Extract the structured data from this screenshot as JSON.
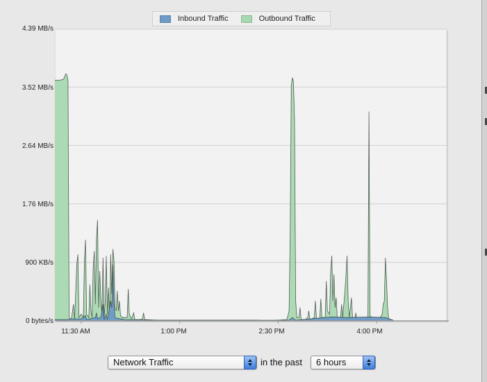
{
  "legend": {
    "inbound_label": "Inbound Traffic",
    "outbound_label": "Outbound Traffic",
    "inbound_color": "#6d9ac7",
    "outbound_color": "#a8d8b0"
  },
  "controls": {
    "metric_value": "Network Traffic",
    "connector_text": "in the past",
    "range_value": "6 hours"
  },
  "chart_data": {
    "type": "area",
    "title": "",
    "xlabel": "",
    "ylabel": "",
    "y_unit": "MB/s",
    "ylim": [
      0,
      4.39
    ],
    "xlim": [
      "11:06 AM",
      "5:04 PM"
    ],
    "grid": true,
    "legend_position": "top",
    "y_ticks": [
      "0 bytes/s",
      "900 KB/s",
      "1.76 MB/s",
      "2.64 MB/s",
      "3.52 MB/s",
      "4.39 MB/s"
    ],
    "y_tick_values": [
      0,
      0.88,
      1.76,
      2.64,
      3.52,
      4.39
    ],
    "x_ticks": [
      "11:30 AM",
      "1:00 PM",
      "2:30 PM",
      "4:00 PM"
    ],
    "x_tick_minutes": [
      690,
      780,
      870,
      960
    ],
    "series": [
      {
        "name": "Outbound Traffic",
        "color": "#a8d8b0",
        "points": [
          [
            666,
            3.62
          ],
          [
            668,
            3.62
          ],
          [
            670,
            3.62
          ],
          [
            672,
            3.63
          ],
          [
            674,
            3.64
          ],
          [
            675,
            3.68
          ],
          [
            676,
            3.72
          ],
          [
            677,
            3.7
          ],
          [
            678,
            3.62
          ],
          [
            679,
            0.05
          ],
          [
            681,
            0.02
          ],
          [
            683,
            0.25
          ],
          [
            684,
            0.02
          ],
          [
            686,
            0.85
          ],
          [
            687,
            1.0
          ],
          [
            688,
            0.05
          ],
          [
            690,
            0.1
          ],
          [
            692,
            0.05
          ],
          [
            693,
            0.9
          ],
          [
            694,
            1.22
          ],
          [
            695,
            0.1
          ],
          [
            697,
            0.05
          ],
          [
            698,
            0.55
          ],
          [
            699,
            0.15
          ],
          [
            700,
            0.05
          ],
          [
            701,
            0.8
          ],
          [
            702,
            1.05
          ],
          [
            703,
            0.25
          ],
          [
            704,
            1.25
          ],
          [
            705,
            1.52
          ],
          [
            706,
            0.2
          ],
          [
            707,
            0.75
          ],
          [
            708,
            0.3
          ],
          [
            709,
            0.1
          ],
          [
            710,
            0.95
          ],
          [
            711,
            0.05
          ],
          [
            712,
            0.3
          ],
          [
            713,
            0.98
          ],
          [
            714,
            0.1
          ],
          [
            715,
            0.5
          ],
          [
            716,
            0.05
          ],
          [
            717,
            1.0
          ],
          [
            718,
            0.4
          ],
          [
            719,
            1.08
          ],
          [
            720,
            0.9
          ],
          [
            721,
            0.2
          ],
          [
            722,
            0.15
          ],
          [
            723,
            0.45
          ],
          [
            724,
            0.15
          ],
          [
            725,
            0.3
          ],
          [
            726,
            0.08
          ],
          [
            728,
            0.05
          ],
          [
            730,
            0.05
          ],
          [
            732,
            0.05
          ],
          [
            733,
            0.48
          ],
          [
            734,
            0.1
          ],
          [
            736,
            0.03
          ],
          [
            738,
            0.12
          ],
          [
            739,
            0.02
          ],
          [
            742,
            0.02
          ],
          [
            744,
            0.02
          ],
          [
            746,
            0.03
          ],
          [
            747,
            0.12
          ],
          [
            748,
            0.02
          ],
          [
            760,
            0.01
          ],
          [
            780,
            0.01
          ],
          [
            800,
            0.01
          ],
          [
            820,
            0.01
          ],
          [
            840,
            0.01
          ],
          [
            850,
            0.01
          ],
          [
            860,
            0.0
          ],
          [
            870,
            0.01
          ],
          [
            878,
            0.02
          ],
          [
            880,
            0.15
          ],
          [
            881,
            1.3
          ],
          [
            882,
            3.55
          ],
          [
            883,
            3.66
          ],
          [
            884,
            3.6
          ],
          [
            885,
            3.0
          ],
          [
            886,
            0.3
          ],
          [
            887,
            0.05
          ],
          [
            889,
            0.05
          ],
          [
            890,
            0.2
          ],
          [
            891,
            0.02
          ],
          [
            895,
            0.02
          ],
          [
            897,
            0.05
          ],
          [
            898,
            0.15
          ],
          [
            899,
            0.02
          ],
          [
            903,
            0.05
          ],
          [
            904,
            0.3
          ],
          [
            905,
            0.04
          ],
          [
            908,
            0.04
          ],
          [
            909,
            0.33
          ],
          [
            910,
            0.05
          ],
          [
            913,
            0.05
          ],
          [
            914,
            0.6
          ],
          [
            915,
            0.15
          ],
          [
            917,
            0.1
          ],
          [
            918,
            0.75
          ],
          [
            919,
            0.98
          ],
          [
            920,
            0.3
          ],
          [
            921,
            0.7
          ],
          [
            922,
            0.2
          ],
          [
            923,
            0.35
          ],
          [
            924,
            0.05
          ],
          [
            927,
            0.05
          ],
          [
            928,
            0.25
          ],
          [
            929,
            0.05
          ],
          [
            931,
            0.45
          ],
          [
            932,
            0.7
          ],
          [
            933,
            0.98
          ],
          [
            934,
            0.3
          ],
          [
            935,
            0.05
          ],
          [
            937,
            0.35
          ],
          [
            938,
            0.05
          ],
          [
            940,
            0.03
          ],
          [
            941,
            0.12
          ],
          [
            942,
            0.02
          ],
          [
            950,
            0.02
          ],
          [
            952,
            0.05
          ],
          [
            953,
            3.15
          ],
          [
            954,
            0.08
          ],
          [
            956,
            0.02
          ],
          [
            962,
            0.02
          ],
          [
            965,
            0.1
          ],
          [
            966,
            0.25
          ],
          [
            967,
            0.3
          ],
          [
            968,
            0.95
          ],
          [
            969,
            0.6
          ],
          [
            970,
            0.2
          ],
          [
            971,
            0.03
          ],
          [
            975,
            0.01
          ]
        ]
      },
      {
        "name": "Inbound Traffic",
        "color": "#6d9ac7",
        "points": [
          [
            666,
            0.02
          ],
          [
            678,
            0.02
          ],
          [
            680,
            0.03
          ],
          [
            690,
            0.03
          ],
          [
            694,
            0.08
          ],
          [
            695,
            0.02
          ],
          [
            700,
            0.04
          ],
          [
            703,
            0.05
          ],
          [
            704,
            0.12
          ],
          [
            705,
            0.03
          ],
          [
            708,
            0.06
          ],
          [
            710,
            0.25
          ],
          [
            711,
            0.02
          ],
          [
            713,
            0.1
          ],
          [
            714,
            0.02
          ],
          [
            717,
            0.3
          ],
          [
            718,
            0.2
          ],
          [
            719,
            0.85
          ],
          [
            720,
            0.25
          ],
          [
            721,
            0.05
          ],
          [
            723,
            0.04
          ],
          [
            730,
            0.02
          ],
          [
            760,
            0.01
          ],
          [
            880,
            0.01
          ],
          [
            883,
            0.05
          ],
          [
            886,
            0.01
          ],
          [
            919,
            0.06
          ],
          [
            933,
            0.05
          ],
          [
            953,
            0.06
          ],
          [
            968,
            0.05
          ],
          [
            975,
            0.01
          ]
        ]
      }
    ]
  }
}
